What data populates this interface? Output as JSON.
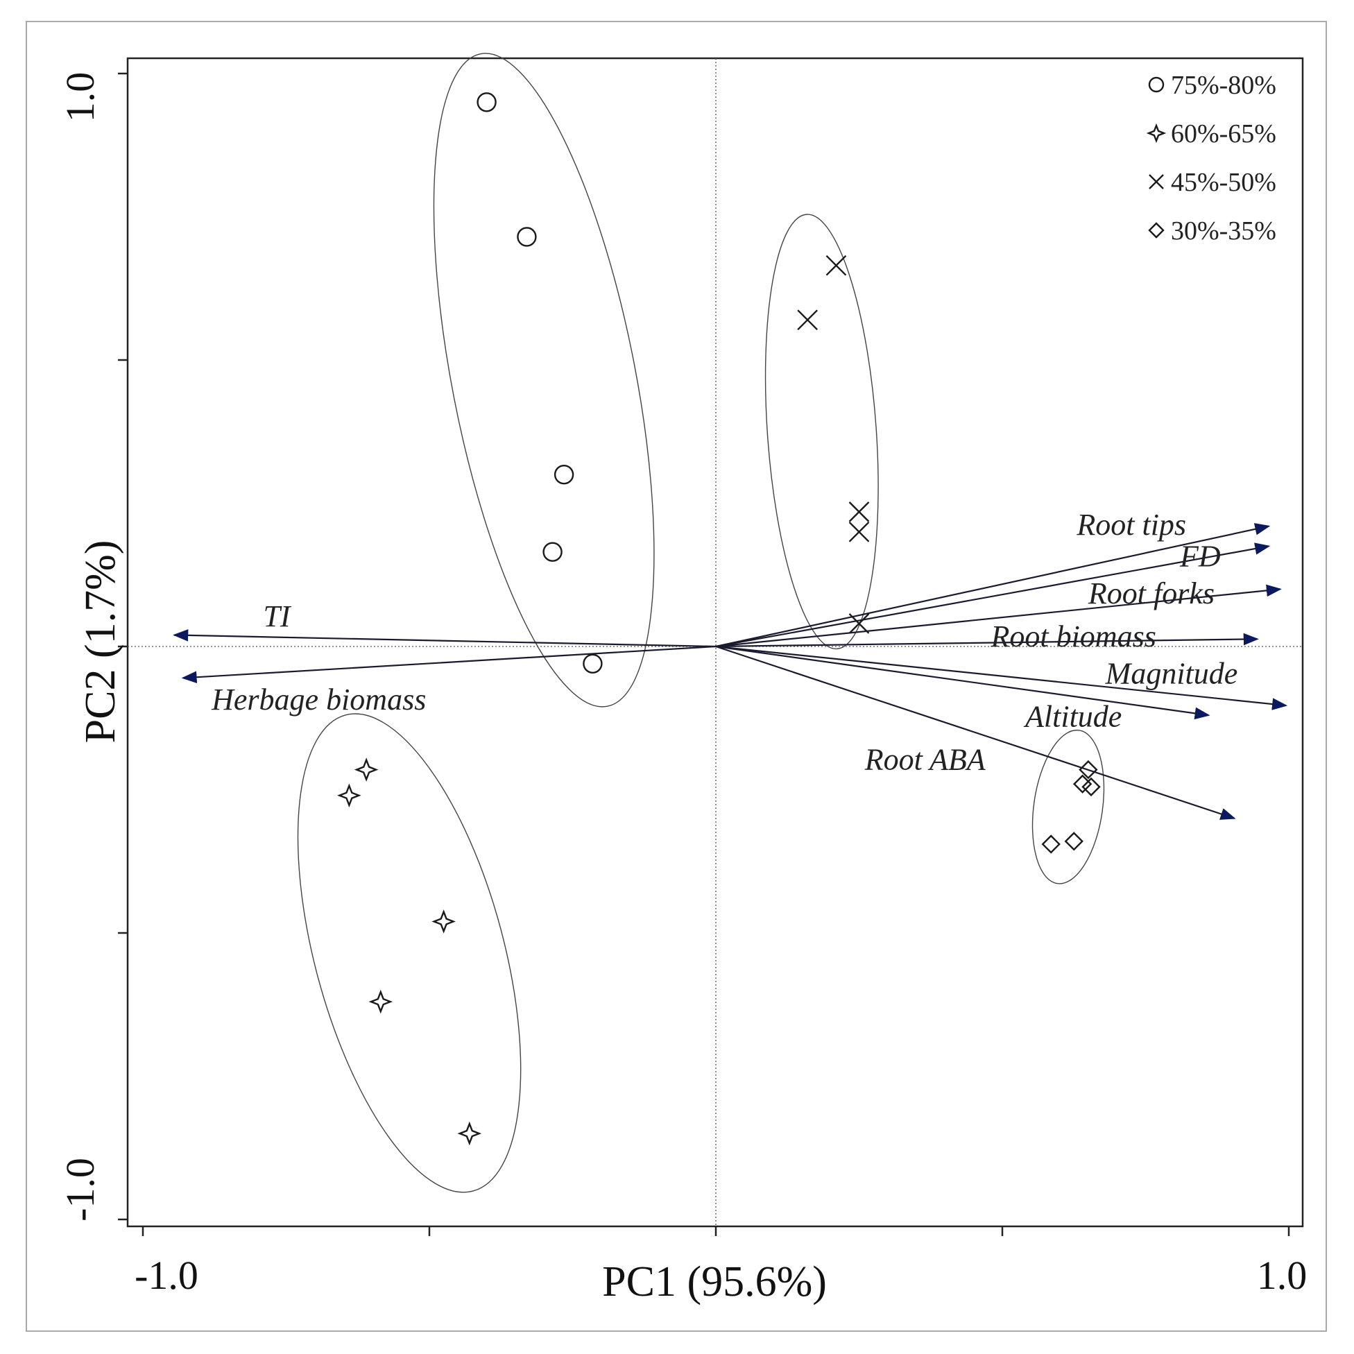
{
  "chart_data": {
    "type": "scatter",
    "subtype": "pca-biplot",
    "xlabel": "PC1 (95.6%)",
    "ylabel": "PC2 (1.7%)",
    "xlim": [
      -1.03,
      1.03
    ],
    "ylim": [
      -1.03,
      1.03
    ],
    "xticks": [
      -1.0,
      -0.5,
      0,
      0.5,
      1.0
    ],
    "yticks": [
      -1.0,
      -0.5,
      0,
      0.5,
      1.0
    ],
    "xtick_labels": [
      "-1.0",
      "1.0"
    ],
    "ytick_labels": [
      "1.0",
      "-1.0"
    ],
    "reference_lines": {
      "x": 0,
      "y": 0,
      "style": "dotted"
    },
    "legend_position": "top-right",
    "series": [
      {
        "name": "75%-80%",
        "marker": "circle",
        "points": [
          [
            -0.4,
            0.95
          ],
          [
            -0.33,
            0.715
          ],
          [
            -0.265,
            0.3
          ],
          [
            -0.285,
            0.165
          ],
          [
            -0.215,
            -0.03
          ]
        ],
        "ellipse": {
          "cx": -0.3,
          "cy": 0.465,
          "rx": 0.16,
          "ry": 0.58,
          "angle_deg": -11
        }
      },
      {
        "name": "60%-65%",
        "marker": "star4",
        "points": [
          [
            -0.61,
            -0.215
          ],
          [
            -0.64,
            -0.26
          ],
          [
            -0.475,
            -0.48
          ],
          [
            -0.585,
            -0.62
          ],
          [
            -0.43,
            -0.85
          ]
        ],
        "ellipse": {
          "cx": -0.535,
          "cy": -0.535,
          "rx": 0.165,
          "ry": 0.43,
          "angle_deg": -15
        }
      },
      {
        "name": "45%-50%",
        "marker": "x",
        "points": [
          [
            0.21,
            0.665
          ],
          [
            0.16,
            0.57
          ],
          [
            0.25,
            0.235
          ],
          [
            0.25,
            0.2
          ],
          [
            0.25,
            0.04
          ]
        ],
        "ellipse": {
          "cx": 0.185,
          "cy": 0.375,
          "rx": 0.095,
          "ry": 0.38,
          "angle_deg": -4
        }
      },
      {
        "name": "30%-35%",
        "marker": "diamond",
        "points": [
          [
            0.65,
            -0.215
          ],
          [
            0.64,
            -0.24
          ],
          [
            0.655,
            -0.245
          ],
          [
            0.585,
            -0.345
          ],
          [
            0.625,
            -0.34
          ]
        ],
        "ellipse": {
          "cx": 0.615,
          "cy": -0.28,
          "rx": 0.06,
          "ry": 0.135,
          "angle_deg": 8
        }
      }
    ],
    "vectors": [
      {
        "name": "Root tips",
        "x": 0.965,
        "y": 0.21,
        "label_x": 0.63,
        "label_y": 0.195
      },
      {
        "name": "FD",
        "x": 0.965,
        "y": 0.175,
        "label_x": 0.81,
        "label_y": 0.14
      },
      {
        "name": "Root forks",
        "x": 0.985,
        "y": 0.1,
        "label_x": 0.65,
        "label_y": 0.075
      },
      {
        "name": "Root biomass",
        "x": 0.945,
        "y": 0.013,
        "label_x": 0.48,
        "label_y": 0.0
      },
      {
        "name": "Magnitude",
        "x": 0.995,
        "y": -0.103,
        "label_x": 0.68,
        "label_y": -0.065
      },
      {
        "name": "Altitude",
        "x": 0.86,
        "y": -0.12,
        "label_x": 0.54,
        "label_y": -0.14
      },
      {
        "name": "Root ABA",
        "x": 0.905,
        "y": -0.3,
        "label_x": 0.26,
        "label_y": -0.215
      },
      {
        "name": "TI",
        "x": -0.945,
        "y": 0.02,
        "label_x": -0.79,
        "label_y": 0.035
      },
      {
        "name": "Herbage biomass",
        "x": -0.93,
        "y": -0.055,
        "label_x": -0.88,
        "label_y": -0.11
      }
    ]
  }
}
